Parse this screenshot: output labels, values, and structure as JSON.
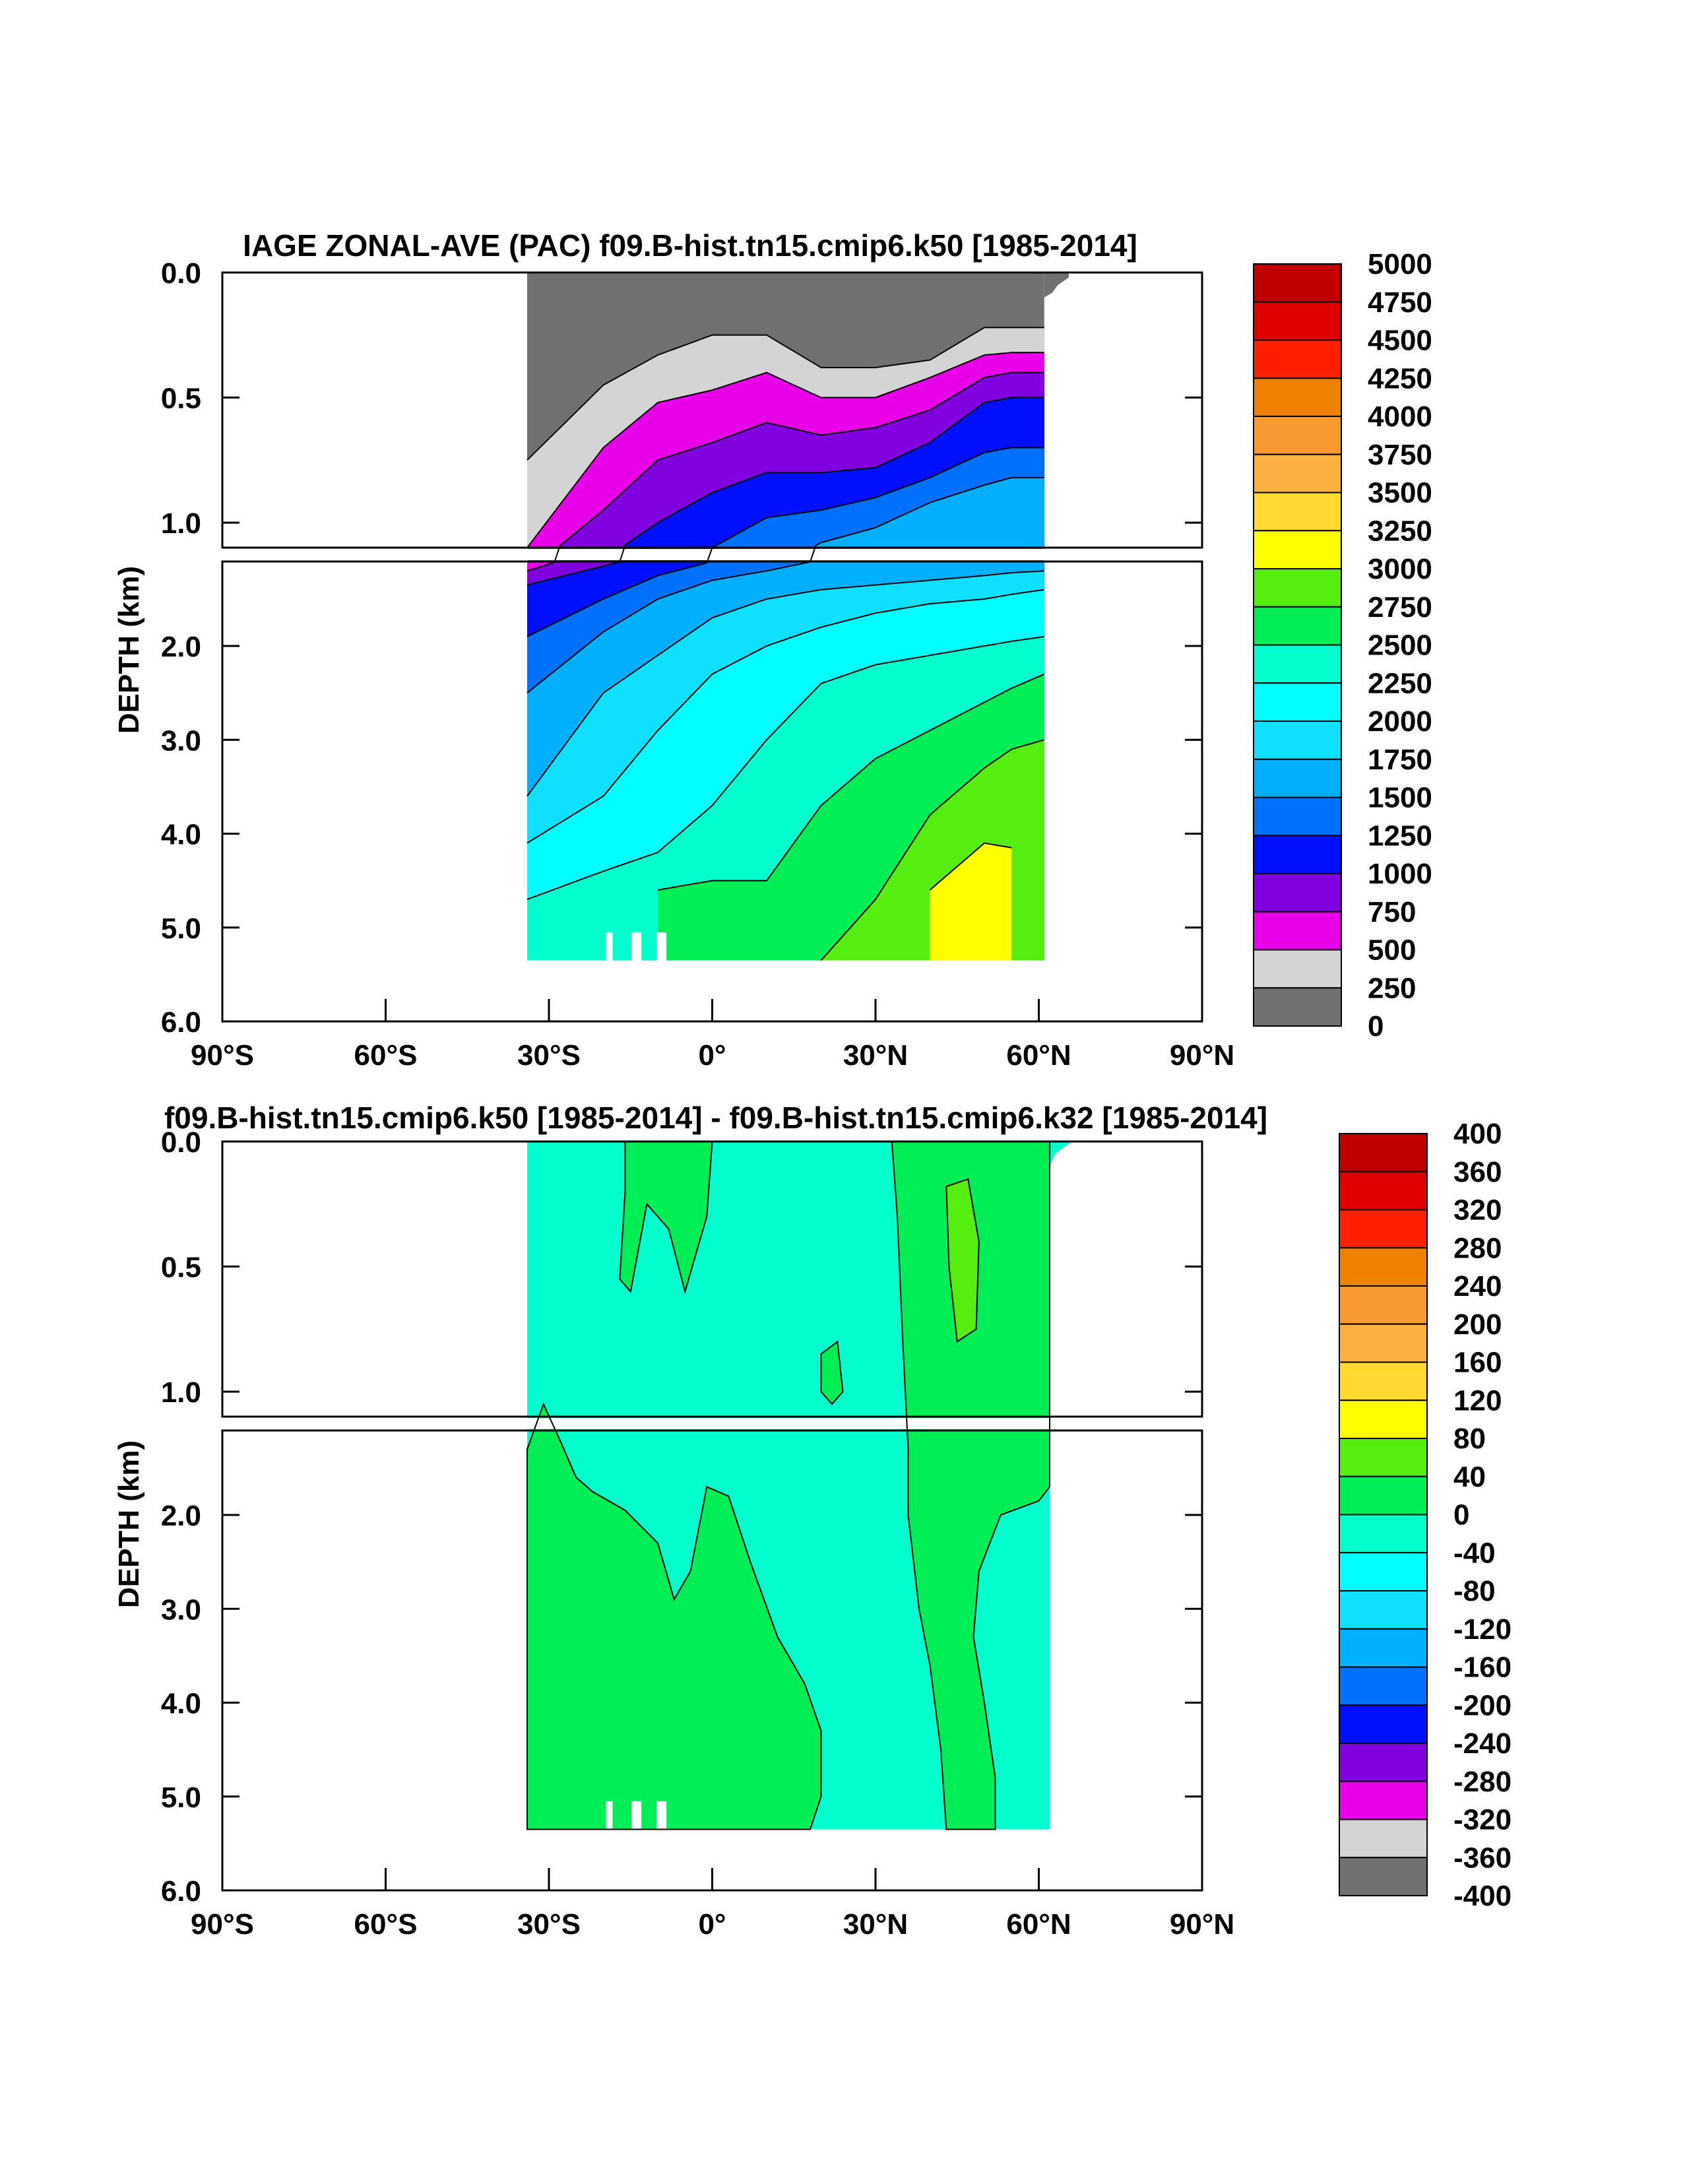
{
  "chart_data": [
    {
      "type": "contour",
      "title": "IAGE ZONAL-AVE (PAC) f09.B-hist.tn15.cmip6.k50 [1985-2014]",
      "xlabel": "",
      "ylabel": "DEPTH (km)",
      "x_ticks": [
        "90°S",
        "60°S",
        "30°S",
        "0°",
        "30°N",
        "60°N",
        "90°N"
      ],
      "x_range": [
        -90,
        90
      ],
      "y_ticks_top_panel": [
        "0.0",
        "0.5",
        "1.0"
      ],
      "y_ticks_bottom_panel": [
        "2.0",
        "3.0",
        "4.0",
        "5.0",
        "6.0"
      ],
      "y_range_km": [
        0,
        6
      ],
      "y_break_km": 1.1,
      "data_extent": {
        "lat_min": -34,
        "lat_max": 65,
        "depth_max_km": 5.35
      },
      "colorbar": {
        "levels": [
          "5000",
          "4750",
          "4500",
          "4250",
          "4000",
          "3750",
          "3500",
          "3250",
          "3000",
          "2750",
          "2500",
          "2250",
          "2000",
          "1750",
          "1500",
          "1250",
          "1000",
          "750",
          "500",
          "250",
          "0"
        ],
        "colors": [
          "#c00000",
          "#e00000",
          "#ff2000",
          "#f08000",
          "#f89a30",
          "#fbb040",
          "#ffd830",
          "#ffff00",
          "#55ee10",
          "#00ee55",
          "#00ffcc",
          "#00ffff",
          "#10e0ff",
          "#00b0ff",
          "#0070ff",
          "#0010ff",
          "#8000e0",
          "#e800e8",
          "#d4d4d4",
          "#707070"
        ]
      },
      "contour_levels": [
        250,
        500,
        750,
        1000,
        1250,
        1500,
        1750,
        2000,
        2250,
        2500,
        2750,
        3000
      ],
      "profiles": {
        "lat": [
          -34,
          -20,
          -10,
          0,
          10,
          20,
          30,
          40,
          50,
          55,
          61
        ],
        "250": [
          0.75,
          0.45,
          0.33,
          0.25,
          0.25,
          0.38,
          0.38,
          0.35,
          0.22,
          0.22,
          0.22
        ],
        "500": [
          1.1,
          0.7,
          0.52,
          0.47,
          0.4,
          0.5,
          0.5,
          0.42,
          0.33,
          0.32,
          0.32
        ],
        "750": [
          1.2,
          0.95,
          0.75,
          0.68,
          0.6,
          0.65,
          0.62,
          0.55,
          0.42,
          0.4,
          0.4
        ],
        "1000": [
          1.35,
          1.15,
          1.0,
          0.88,
          0.8,
          0.8,
          0.78,
          0.68,
          0.52,
          0.5,
          0.5
        ],
        "1250": [
          1.9,
          1.5,
          1.25,
          1.1,
          0.98,
          0.95,
          0.9,
          0.82,
          0.72,
          0.7,
          0.7
        ],
        "1500": [
          2.5,
          1.85,
          1.5,
          1.3,
          1.2,
          1.08,
          1.02,
          0.92,
          0.85,
          0.82,
          0.82
        ],
        "1750": [
          3.6,
          2.5,
          2.1,
          1.7,
          1.5,
          1.4,
          1.35,
          1.3,
          1.25,
          1.22,
          1.2
        ],
        "2000": [
          4.1,
          3.6,
          2.9,
          2.3,
          2.0,
          1.8,
          1.65,
          1.55,
          1.5,
          1.45,
          1.4
        ],
        "2250": [
          4.7,
          4.4,
          4.2,
          3.7,
          3.0,
          2.4,
          2.2,
          2.1,
          2.0,
          1.95,
          1.9
        ],
        "2500": [
          null,
          null,
          4.6,
          4.5,
          4.5,
          3.7,
          3.2,
          2.9,
          2.6,
          2.45,
          2.3
        ],
        "2750": [
          null,
          null,
          null,
          null,
          null,
          5.35,
          4.7,
          3.8,
          3.3,
          3.1,
          3.0
        ],
        "3000": [
          null,
          null,
          null,
          null,
          null,
          null,
          null,
          4.6,
          4.1,
          4.15,
          null
        ]
      }
    },
    {
      "type": "contour",
      "title": "f09.B-hist.tn15.cmip6.k50 [1985-2014] - f09.B-hist.tn15.cmip6.k32 [1985-2014]",
      "xlabel": "",
      "ylabel": "DEPTH (km)",
      "x_ticks": [
        "90°S",
        "60°S",
        "30°S",
        "0°",
        "30°N",
        "60°N",
        "90°N"
      ],
      "x_range": [
        -90,
        90
      ],
      "y_ticks_top_panel": [
        "0.0",
        "0.5",
        "1.0"
      ],
      "y_ticks_bottom_panel": [
        "2.0",
        "3.0",
        "4.0",
        "5.0",
        "6.0"
      ],
      "y_range_km": [
        0,
        6
      ],
      "y_break_km": 1.1,
      "data_extent": {
        "lat_min": -34,
        "lat_max": 65,
        "depth_max_km": 5.35
      },
      "colorbar": {
        "levels": [
          "400",
          "360",
          "320",
          "280",
          "240",
          "200",
          "160",
          "120",
          "80",
          "40",
          "0",
          "-40",
          "-80",
          "-120",
          "-160",
          "-200",
          "-240",
          "-280",
          "-320",
          "-360",
          "-400"
        ],
        "colors": [
          "#c00000",
          "#e00000",
          "#ff2000",
          "#f08000",
          "#f89a30",
          "#fbb040",
          "#ffd830",
          "#ffff00",
          "#55ee10",
          "#00ee55",
          "#00ffcc",
          "#00ffff",
          "#10e0ff",
          "#00b0ff",
          "#0070ff",
          "#0010ff",
          "#8000e0",
          "#e800e8",
          "#d4d4d4",
          "#707070"
        ]
      },
      "regions": [
        {
          "sign": "positive (0 to 40)",
          "lat_range": [
            -34,
            -5
          ],
          "depth_range_km": [
            1.0,
            5.35
          ]
        },
        {
          "sign": "positive (0 to 40)",
          "lat_range": [
            -5,
            25
          ],
          "depth_range_km": [
            1.8,
            5.35
          ]
        },
        {
          "sign": "positive (0 to 40)",
          "lat_range": [
            35,
            62
          ],
          "depth_range_km": [
            0.0,
            1.9
          ]
        },
        {
          "sign": "positive (40 to 80)",
          "lat_range": [
            43,
            49
          ],
          "depth_range_km": [
            0.15,
            0.75
          ]
        }
      ]
    }
  ]
}
